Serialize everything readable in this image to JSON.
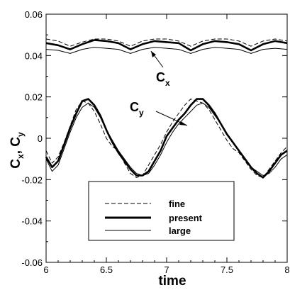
{
  "chart_data": {
    "type": "line",
    "title": "",
    "xlabel": "time",
    "ylabel_main": "C",
    "ylabel_sub1": "x",
    "ylabel_sep": ",",
    "ylabel_sub2": "y",
    "xlim": [
      6,
      8
    ],
    "ylim": [
      -0.06,
      0.06
    ],
    "x_ticks": [
      6,
      6.5,
      7,
      7.5,
      8
    ],
    "x_tick_labels": [
      "6",
      "6.5",
      "7",
      "7.5",
      "8"
    ],
    "y_ticks": [
      -0.06,
      -0.04,
      -0.02,
      0,
      0.02,
      0.04,
      0.06
    ],
    "y_tick_labels": [
      "-0.06",
      "-0.04",
      "-0.02",
      "0",
      "0.02",
      "0.04",
      "0.06"
    ],
    "grid": false,
    "legend_position": "bottom-center",
    "annotations": {
      "cx": {
        "main": "C",
        "sub": "x"
      },
      "cy": {
        "main": "C",
        "sub": "y"
      }
    },
    "series": [
      {
        "name": "fine",
        "style": "dashed",
        "quantity": "Cx",
        "x": [
          6.0,
          6.1,
          6.2,
          6.3,
          6.4,
          6.5,
          6.6,
          6.7,
          6.8,
          6.9,
          7.0,
          7.1,
          7.2,
          7.3,
          7.4,
          7.5,
          7.6,
          7.7,
          7.8,
          7.9,
          8.0
        ],
        "y": [
          0.048,
          0.047,
          0.0445,
          0.0465,
          0.048,
          0.048,
          0.047,
          0.0445,
          0.047,
          0.048,
          0.048,
          0.047,
          0.0445,
          0.047,
          0.048,
          0.048,
          0.047,
          0.0445,
          0.047,
          0.048,
          0.047
        ]
      },
      {
        "name": "present",
        "style": "thick",
        "quantity": "Cx",
        "x": [
          6.0,
          6.1,
          6.2,
          6.3,
          6.4,
          6.5,
          6.6,
          6.7,
          6.8,
          6.9,
          7.0,
          7.1,
          7.2,
          7.3,
          7.4,
          7.5,
          7.6,
          7.7,
          7.8,
          7.9,
          8.0
        ],
        "y": [
          0.046,
          0.045,
          0.043,
          0.0455,
          0.0475,
          0.047,
          0.046,
          0.043,
          0.0455,
          0.047,
          0.0465,
          0.046,
          0.0425,
          0.0455,
          0.047,
          0.0465,
          0.0455,
          0.0425,
          0.0455,
          0.047,
          0.046
        ]
      },
      {
        "name": "large",
        "style": "thin",
        "quantity": "Cx",
        "x": [
          6.0,
          6.1,
          6.2,
          6.3,
          6.4,
          6.5,
          6.6,
          6.7,
          6.8,
          6.9,
          7.0,
          7.1,
          7.2,
          7.3,
          7.4,
          7.5,
          7.6,
          7.7,
          7.8,
          7.9,
          8.0
        ],
        "y": [
          0.043,
          0.0425,
          0.041,
          0.043,
          0.044,
          0.0435,
          0.043,
          0.041,
          0.043,
          0.044,
          0.0435,
          0.043,
          0.041,
          0.043,
          0.044,
          0.0435,
          0.043,
          0.041,
          0.043,
          0.0435,
          0.043
        ]
      },
      {
        "name": "fine",
        "style": "dashed",
        "quantity": "Cy",
        "x": [
          6.0,
          6.05,
          6.1,
          6.15,
          6.2,
          6.25,
          6.3,
          6.35,
          6.4,
          6.45,
          6.5,
          6.55,
          6.6,
          6.65,
          6.7,
          6.75,
          6.8,
          6.85,
          6.9,
          6.95,
          7.0,
          7.05,
          7.1,
          7.15,
          7.2,
          7.25,
          7.3,
          7.35,
          7.4,
          7.45,
          7.5,
          7.55,
          7.6,
          7.65,
          7.7,
          7.75,
          7.8,
          7.85,
          7.9,
          7.95,
          8.0
        ],
        "y": [
          -0.006,
          -0.012,
          -0.009,
          -0.002,
          0.006,
          0.014,
          0.018,
          0.017,
          0.013,
          0.007,
          0.0,
          -0.004,
          -0.006,
          -0.012,
          -0.017,
          -0.019,
          -0.018,
          -0.013,
          -0.008,
          -0.003,
          0.003,
          0.008,
          0.012,
          0.016,
          0.019,
          0.018,
          0.017,
          0.014,
          0.009,
          0.004,
          -0.001,
          -0.005,
          -0.007,
          -0.011,
          -0.015,
          -0.018,
          -0.019,
          -0.015,
          -0.011,
          -0.007,
          -0.004
        ]
      },
      {
        "name": "present",
        "style": "thick",
        "quantity": "Cy",
        "x": [
          6.0,
          6.05,
          6.1,
          6.15,
          6.2,
          6.25,
          6.3,
          6.35,
          6.4,
          6.45,
          6.5,
          6.55,
          6.6,
          6.65,
          6.7,
          6.75,
          6.8,
          6.85,
          6.9,
          6.95,
          7.0,
          7.05,
          7.1,
          7.15,
          7.2,
          7.25,
          7.3,
          7.35,
          7.4,
          7.45,
          7.5,
          7.55,
          7.6,
          7.65,
          7.7,
          7.75,
          7.8,
          7.85,
          7.9,
          7.95,
          8.0
        ],
        "y": [
          -0.009,
          -0.014,
          -0.011,
          -0.003,
          0.005,
          0.012,
          0.018,
          0.019,
          0.016,
          0.011,
          0.004,
          -0.002,
          -0.007,
          -0.011,
          -0.015,
          -0.018,
          -0.018,
          -0.016,
          -0.011,
          -0.006,
          0.001,
          0.005,
          0.009,
          0.012,
          0.016,
          0.019,
          0.019,
          0.016,
          0.012,
          0.007,
          0.002,
          -0.002,
          -0.006,
          -0.01,
          -0.014,
          -0.017,
          -0.019,
          -0.016,
          -0.012,
          -0.008,
          -0.006
        ]
      },
      {
        "name": "large",
        "style": "thin",
        "quantity": "Cy",
        "x": [
          6.0,
          6.05,
          6.1,
          6.15,
          6.2,
          6.25,
          6.3,
          6.35,
          6.4,
          6.45,
          6.5,
          6.55,
          6.6,
          6.65,
          6.7,
          6.75,
          6.8,
          6.85,
          6.9,
          6.95,
          7.0,
          7.05,
          7.1,
          7.15,
          7.2,
          7.25,
          7.3,
          7.35,
          7.4,
          7.45,
          7.5,
          7.55,
          7.6,
          7.65,
          7.7,
          7.75,
          7.8,
          7.85,
          7.9,
          7.95,
          8.0
        ],
        "y": [
          -0.01,
          -0.016,
          -0.013,
          -0.005,
          0.003,
          0.01,
          0.015,
          0.017,
          0.015,
          0.01,
          0.004,
          -0.001,
          -0.006,
          -0.01,
          -0.014,
          -0.017,
          -0.018,
          -0.017,
          -0.013,
          -0.008,
          -0.002,
          0.003,
          0.007,
          0.01,
          0.013,
          0.016,
          0.017,
          0.015,
          0.011,
          0.007,
          0.002,
          -0.002,
          -0.006,
          -0.01,
          -0.014,
          -0.016,
          -0.018,
          -0.017,
          -0.014,
          -0.01,
          -0.008
        ]
      }
    ],
    "legend": [
      {
        "label": "fine",
        "style": "dashed"
      },
      {
        "label": "present",
        "style": "thick"
      },
      {
        "label": "large",
        "style": "thin"
      }
    ]
  }
}
